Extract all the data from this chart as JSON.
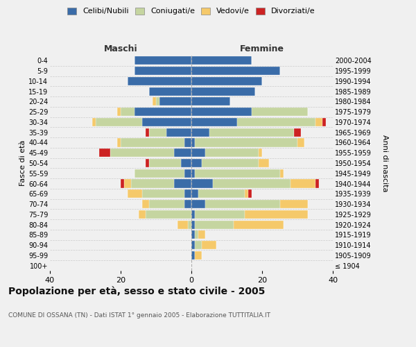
{
  "age_groups": [
    "100+",
    "95-99",
    "90-94",
    "85-89",
    "80-84",
    "75-79",
    "70-74",
    "65-69",
    "60-64",
    "55-59",
    "50-54",
    "45-49",
    "40-44",
    "35-39",
    "30-34",
    "25-29",
    "20-24",
    "15-19",
    "10-14",
    "5-9",
    "0-4"
  ],
  "birth_years": [
    "≤ 1904",
    "1905-1909",
    "1910-1914",
    "1915-1919",
    "1920-1924",
    "1925-1929",
    "1930-1934",
    "1935-1939",
    "1940-1944",
    "1945-1949",
    "1950-1954",
    "1955-1959",
    "1960-1964",
    "1965-1969",
    "1970-1974",
    "1975-1979",
    "1980-1984",
    "1985-1989",
    "1990-1994",
    "1995-1999",
    "2000-2004"
  ],
  "colors": {
    "celibi": "#3a6ca8",
    "coniugati": "#c5d5a0",
    "vedovi": "#f5c96a",
    "divorziati": "#cc2222"
  },
  "maschi": {
    "celibi": [
      0,
      0,
      0,
      0,
      0,
      0,
      2,
      2,
      5,
      2,
      3,
      5,
      2,
      7,
      14,
      16,
      9,
      12,
      18,
      16,
      16
    ],
    "coniugati": [
      0,
      0,
      0,
      0,
      1,
      13,
      10,
      12,
      12,
      14,
      9,
      18,
      18,
      5,
      13,
      4,
      1,
      0,
      0,
      0,
      0
    ],
    "vedovi": [
      0,
      0,
      0,
      0,
      3,
      2,
      2,
      4,
      2,
      0,
      0,
      0,
      1,
      0,
      1,
      1,
      1,
      0,
      0,
      0,
      0
    ],
    "divorziati": [
      0,
      0,
      0,
      0,
      0,
      0,
      0,
      0,
      1,
      0,
      1,
      3,
      0,
      1,
      0,
      0,
      0,
      0,
      0,
      0,
      0
    ]
  },
  "femmine": {
    "celibi": [
      0,
      1,
      1,
      1,
      1,
      1,
      4,
      2,
      6,
      1,
      3,
      4,
      1,
      5,
      13,
      17,
      11,
      18,
      20,
      25,
      17
    ],
    "coniugati": [
      0,
      0,
      2,
      1,
      11,
      14,
      21,
      13,
      22,
      24,
      16,
      15,
      29,
      24,
      22,
      16,
      0,
      0,
      0,
      0,
      0
    ],
    "vedovi": [
      0,
      2,
      4,
      2,
      14,
      18,
      8,
      1,
      7,
      1,
      3,
      1,
      2,
      0,
      2,
      0,
      0,
      0,
      0,
      0,
      0
    ],
    "divorziati": [
      0,
      0,
      0,
      0,
      0,
      0,
      0,
      1,
      1,
      0,
      0,
      0,
      0,
      2,
      1,
      0,
      0,
      0,
      0,
      0,
      0
    ]
  },
  "xlim": 40,
  "title": "Popolazione per età, sesso e stato civile - 2005",
  "subtitle": "COMUNE DI OSSANA (TN) - Dati ISTAT 1° gennaio 2005 - Elaborazione TUTTITALIA.IT",
  "ylabel_left": "Fasce di età",
  "ylabel_right": "Anni di nascita",
  "legend_labels": [
    "Celibi/Nubili",
    "Coniugati/e",
    "Vedovi/e",
    "Divorziati/e"
  ],
  "maschi_label": "Maschi",
  "femmine_label": "Femmine",
  "background_color": "#f0f0f0",
  "grid_color": "#cccccc"
}
